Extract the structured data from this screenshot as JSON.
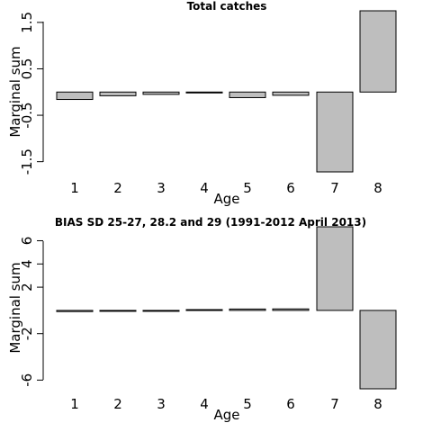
{
  "chart_data": [
    {
      "type": "bar",
      "title": "Total catches",
      "xlabel": "Age",
      "ylabel": "Marginal sum",
      "categories": [
        "1",
        "2",
        "3",
        "4",
        "5",
        "6",
        "7",
        "8"
      ],
      "values": [
        -0.16,
        -0.08,
        -0.05,
        -0.01,
        -0.12,
        -0.07,
        -1.72,
        1.75
      ],
      "ylim": [
        -1.72,
        1.75
      ],
      "yticks": [
        -1.5,
        -0.5,
        0.5,
        1.5
      ],
      "ytick_labels": [
        "-1.5",
        "-0.5",
        "0.5",
        "1.5"
      ],
      "colors": {
        "bar_fill": "#bebebe",
        "bar_stroke": "#000000"
      }
    },
    {
      "type": "bar",
      "title": "BIAS SD 25-27, 28.2 and 29 (1991-2012 April 2013)",
      "xlabel": "Age",
      "ylabel": "Marginal sum",
      "categories": [
        "1",
        "2",
        "3",
        "4",
        "5",
        "6",
        "7",
        "8"
      ],
      "values": [
        -0.1,
        -0.05,
        0.0,
        0.07,
        0.12,
        0.13,
        7.2,
        -6.75
      ],
      "ylim": [
        -6.75,
        7.2
      ],
      "yticks": [
        -6,
        -2,
        2,
        4,
        6
      ],
      "ytick_labels": [
        "-6",
        "-2",
        "2",
        "4",
        "6"
      ],
      "colors": {
        "bar_fill": "#bebebe",
        "bar_stroke": "#000000"
      }
    }
  ]
}
